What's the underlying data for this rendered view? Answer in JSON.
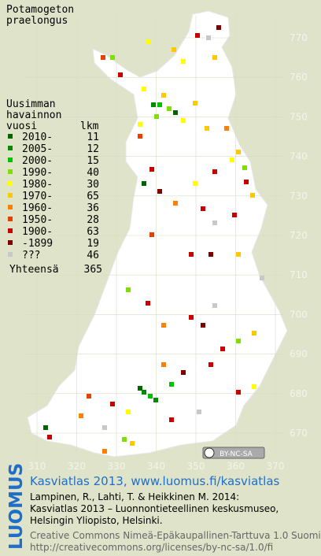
{
  "title": [
    "Potamogeton",
    "praelongus"
  ],
  "legend": {
    "heading": [
      "Uusimman",
      "havainnon",
      "vuosi"
    ],
    "count_heading": "lkm",
    "rows": [
      {
        "label": "2010-",
        "count": 11,
        "color": "#006400"
      },
      {
        "label": "2005-",
        "count": 12,
        "color": "#008c00"
      },
      {
        "label": "2000-",
        "count": 15,
        "color": "#00c000"
      },
      {
        "label": "1990-",
        "count": 40,
        "color": "#7fdf00"
      },
      {
        "label": "1980-",
        "count": 30,
        "color": "#ffff00"
      },
      {
        "label": "1970-",
        "count": 65,
        "color": "#ffc800"
      },
      {
        "label": "1960-",
        "count": 36,
        "color": "#ff8000"
      },
      {
        "label": "1950-",
        "count": 28,
        "color": "#e84000"
      },
      {
        "label": "1900-",
        "count": 63,
        "color": "#c80000"
      },
      {
        "label": "-1899",
        "count": 19,
        "color": "#800000"
      },
      {
        "label": "???",
        "count": 46,
        "color": "#c8c8c8"
      }
    ],
    "total_label": "Yhteensä",
    "total": 365
  },
  "grid": {
    "y_labels": [
      770,
      760,
      750,
      740,
      730,
      720,
      710,
      700,
      690,
      680,
      670
    ],
    "x_labels": [
      310,
      320,
      330,
      340,
      350,
      360,
      370
    ]
  },
  "license_badge": "BY-NC-SA",
  "footer": {
    "brand": "LUOMUS",
    "heading": "Kasviatlas 2013, www.luomus.fi/kasviatlas",
    "citation": [
      "Lampinen, R., Lahti, T. & Heikkinen M. 2014:",
      "Kasviatlas 2013 – Luonnontieteellinen keskusmuseo,",
      "Helsingin Yliopisto, Helsinki."
    ],
    "license": [
      "Creative Commons Nimeä-Epäkaupallinen-Tarttuva 1.0 Suomi",
      "http://creativecommons.org/licenses/by-nc-sa/1.0/fi"
    ]
  }
}
